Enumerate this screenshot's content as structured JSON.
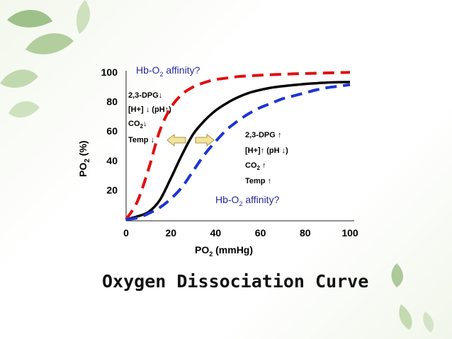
{
  "slide": {
    "title": "Oxygen Dissociation Curve"
  },
  "chart_data": {
    "type": "line",
    "xlabel": {
      "main": "PO",
      "sub": "2",
      "tail": " (mmHg)"
    },
    "ylabel": {
      "main": "PO",
      "sub": "2",
      "tail": " (%)"
    },
    "xlim": [
      0,
      100
    ],
    "ylim": [
      0,
      100
    ],
    "x_ticks": [
      "0",
      "20",
      "40",
      "60",
      "80",
      "100"
    ],
    "y_ticks": [
      "20",
      "40",
      "60",
      "80",
      "100"
    ],
    "y_tick_values": [
      20,
      40,
      60,
      80,
      100
    ],
    "x_tick_values": [
      0,
      20,
      40,
      60,
      80,
      100
    ],
    "grid": false,
    "series": [
      {
        "style": "solid",
        "color": "#000000",
        "x": [
          0,
          5,
          10,
          15,
          20,
          25,
          30,
          35,
          40,
          45,
          50,
          55,
          60,
          65,
          70,
          75,
          80,
          85,
          90,
          95,
          100
        ],
        "y": [
          0,
          2,
          5,
          13,
          28,
          44,
          58,
          67,
          74,
          79,
          83,
          86,
          88,
          89.5,
          90.5,
          91.3,
          92,
          92.5,
          93,
          93.2,
          93.3
        ]
      },
      {
        "style": "dashed",
        "color": "#e01010",
        "x": [
          0,
          5,
          10,
          15,
          20,
          25,
          30,
          35,
          40,
          45,
          50,
          55,
          60,
          65,
          70,
          75,
          80,
          85,
          90,
          95,
          100
        ],
        "y": [
          0,
          12,
          34,
          60,
          76,
          85,
          90,
          93,
          95,
          96,
          97,
          97.5,
          98,
          98.3,
          98.6,
          98.9,
          99.1,
          99.3,
          99.5,
          99.7,
          99.9
        ]
      },
      {
        "style": "dashed",
        "color": "#1c34d4",
        "x": [
          0,
          5,
          10,
          15,
          20,
          25,
          30,
          35,
          40,
          45,
          50,
          55,
          60,
          65,
          70,
          75,
          80,
          85,
          90,
          95,
          100
        ],
        "y": [
          0,
          1,
          4,
          8,
          14,
          22,
          33,
          44,
          53,
          61,
          67,
          72,
          76,
          79,
          82,
          84,
          86,
          88,
          89.5,
          90.5,
          91.5
        ]
      }
    ],
    "annotations": {
      "left_affinity": {
        "pre": "Hb-O",
        "sub": "2",
        "post": " affinity?"
      },
      "right_affinity": {
        "pre": "Hb-O",
        "sub": "2",
        "post": " affinity?"
      },
      "left_factors": [
        {
          "pre": "2,3-DPG↓",
          "sub": "",
          "post": ""
        },
        {
          "pre": " [H+] ↓ (pH↑)",
          "sub": "",
          "post": ""
        },
        {
          "pre": "CO",
          "sub": "2",
          "post": "↓"
        },
        {
          "pre": "Temp ↓",
          "sub": "",
          "post": ""
        }
      ],
      "right_factors": [
        {
          "pre": "2,3-DPG ↑",
          "sub": "",
          "post": ""
        },
        {
          "pre": "[H+]↑ (pH ↓)",
          "sub": "",
          "post": ""
        },
        {
          "pre": "CO",
          "sub": "2",
          "post": " ↑"
        },
        {
          "pre": "Temp ↑",
          "sub": "",
          "post": ""
        }
      ],
      "arrow_color": "#f4e49a"
    }
  }
}
